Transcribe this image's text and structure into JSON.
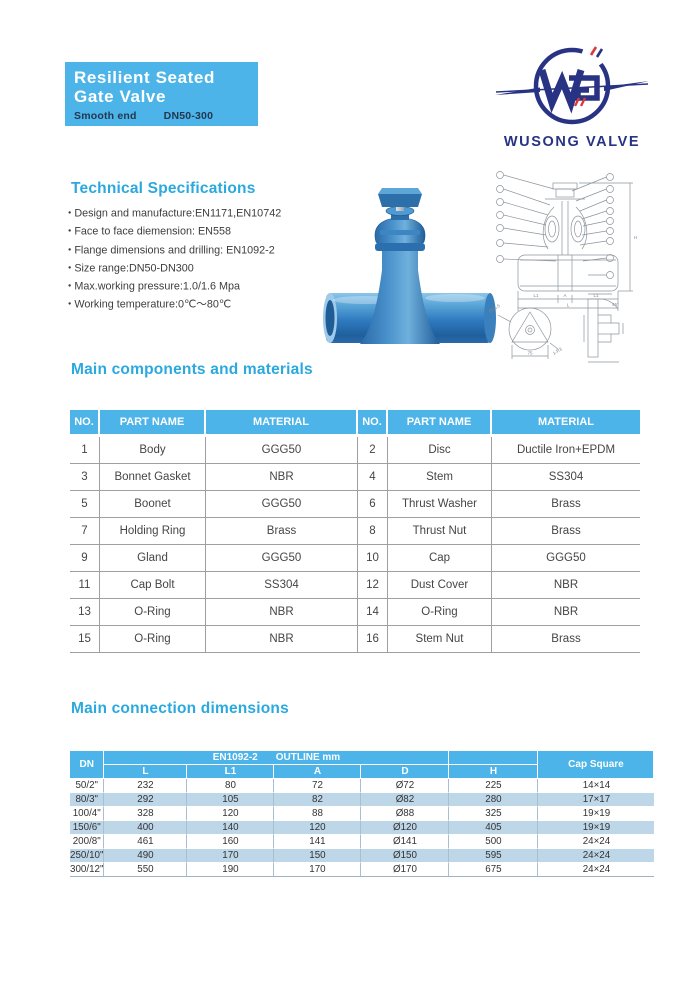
{
  "header": {
    "title_line1": "Resilient Seated",
    "title_line2": "Gate Valve",
    "subtitle_product": "Smooth end",
    "subtitle_size": "DN50-300"
  },
  "logo": {
    "name": "WUSONG VALVE"
  },
  "tech_specs": {
    "heading": "Technical Specifications",
    "bullets": [
      "Design and manufacture:EN1171,EN10742",
      "Face to face diemension: EN558",
      "Flange dimensions and drilling: EN1092-2",
      "Size range:DN50-DN300",
      "Max.working pressure:1.0/1.6 Mpa",
      "Working temperature:0℃～80℃"
    ]
  },
  "components": {
    "heading": "Main components and materials",
    "columns": [
      "NO.",
      "PART NAME",
      "MATERIAL",
      "NO.",
      "PART NAME",
      "MATERIAL"
    ],
    "rows": [
      [
        "1",
        "Body",
        "GGG50",
        "2",
        "Disc",
        "Ductile Iron+EPDM"
      ],
      [
        "3",
        "Bonnet Gasket",
        "NBR",
        "4",
        "Stem",
        "SS304"
      ],
      [
        "5",
        "Boonet",
        "GGG50",
        "6",
        "Thrust Washer",
        "Brass"
      ],
      [
        "7",
        "Holding Ring",
        "Brass",
        "8",
        "Thrust Nut",
        "Brass"
      ],
      [
        "9",
        "Gland",
        "GGG50",
        "10",
        "Cap",
        "GGG50"
      ],
      [
        "11",
        "Cap Bolt",
        "SS304",
        "12",
        "Dust Cover",
        "NBR"
      ],
      [
        "13",
        "O-Ring",
        "NBR",
        "14",
        "O-Ring",
        "NBR"
      ],
      [
        "15",
        "O-Ring",
        "NBR",
        "16",
        "Stem Nut",
        "Brass"
      ]
    ]
  },
  "dimensions": {
    "heading": "Main connection dimensions",
    "dn_header": "DN",
    "group_header_left": "EN1092-2",
    "group_header_right": "OUTLINE mm",
    "sub_columns": [
      "L",
      "L1",
      "A",
      "D"
    ],
    "h_header": "H",
    "cap_header": "Cap Square",
    "rows": [
      [
        "50/2\"",
        "232",
        "80",
        "72",
        "Ø72",
        "225",
        "14×14"
      ],
      [
        "80/3\"",
        "292",
        "105",
        "82",
        "Ø82",
        "280",
        "17×17"
      ],
      [
        "100/4\"",
        "328",
        "120",
        "88",
        "Ø88",
        "325",
        "19×19"
      ],
      [
        "150/6\"",
        "400",
        "140",
        "120",
        "Ø120",
        "405",
        "19×19"
      ],
      [
        "200/8\"",
        "461",
        "160",
        "141",
        "Ø141",
        "500",
        "24×24"
      ],
      [
        "250/10\"",
        "490",
        "170",
        "150",
        "Ø150",
        "595",
        "24×24"
      ],
      [
        "300/12\"",
        "550",
        "190",
        "170",
        "Ø170",
        "675",
        "24×24"
      ]
    ]
  },
  "drawing": {
    "labels": {
      "l1_left": "L1",
      "a": "A",
      "l1_right": "L1",
      "l": "L",
      "h": "H",
      "circle_dia": "Ø55.5",
      "circle_width": "75",
      "fillet": "1-R3",
      "angle": "45°"
    }
  },
  "colors": {
    "accent_blue": "#4cb4e8",
    "heading_blue": "#2aa9de",
    "logo_navy": "#283383",
    "logo_red": "#d93a3c",
    "row_alt": "#bdd6e8",
    "valve_blue": "#2f7abf"
  }
}
